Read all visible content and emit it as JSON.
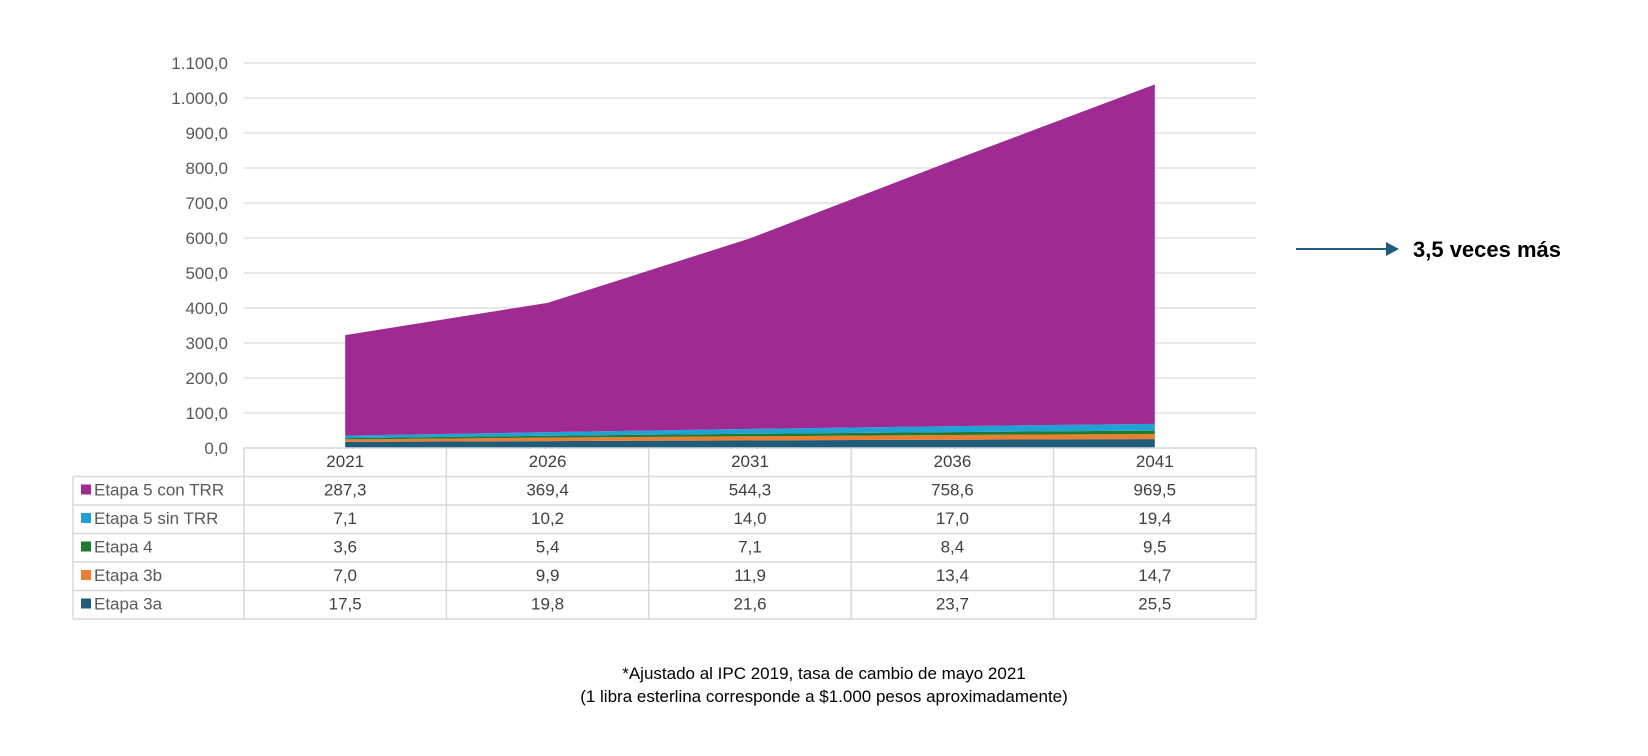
{
  "chart_data": {
    "type": "area",
    "stacked": true,
    "title": "",
    "xlabel": "",
    "ylabel": "",
    "categories": [
      "2021",
      "2026",
      "2031",
      "2036",
      "2041"
    ],
    "ylim": [
      0,
      1100
    ],
    "yticks": [
      0,
      100,
      200,
      300,
      400,
      500,
      600,
      700,
      800,
      900,
      1000,
      1100
    ],
    "ytick_labels": [
      "0,0",
      "100,0",
      "200,0",
      "300,0",
      "400,0",
      "500,0",
      "600,0",
      "700,0",
      "800,0",
      "900,0",
      "1.000,0",
      "1.100,0"
    ],
    "grid": true,
    "legend": "data table below the chart",
    "series": [
      {
        "name": "Etapa 3a",
        "color": "#1F5C7A",
        "values": [
          17.5,
          19.8,
          21.6,
          23.7,
          25.5
        ],
        "labels": [
          "17,5",
          "19,8",
          "21,6",
          "23,7",
          "25,5"
        ]
      },
      {
        "name": "Etapa 3b",
        "color": "#ED7D31",
        "values": [
          7.0,
          9.9,
          11.9,
          13.4,
          14.7
        ],
        "labels": [
          "7,0",
          "9,9",
          "11,9",
          "13,4",
          "14,7"
        ]
      },
      {
        "name": "Etapa 4",
        "color": "#1E7A2E",
        "values": [
          3.6,
          5.4,
          7.1,
          8.4,
          9.5
        ],
        "labels": [
          "3,6",
          "5,4",
          "7,1",
          "8,4",
          "9,5"
        ]
      },
      {
        "name": "Etapa 5 sin TRR",
        "color": "#1FA3D6",
        "values": [
          7.1,
          10.2,
          14.0,
          17.0,
          19.4
        ],
        "labels": [
          "7,1",
          "10,2",
          "14,0",
          "17,0",
          "19,4"
        ]
      },
      {
        "name": "Etapa 5 con TRR",
        "color": "#9F2A92",
        "values": [
          287.3,
          369.4,
          544.3,
          758.6,
          969.5
        ],
        "labels": [
          "287,3",
          "369,4",
          "544,3",
          "758,6",
          "969,5"
        ]
      }
    ],
    "table_row_order": [
      "Etapa 5 con TRR",
      "Etapa 5 sin TRR",
      "Etapa 4",
      "Etapa 3b",
      "Etapa 3a"
    ],
    "annotations": [
      {
        "text": "3,5 veces más",
        "arrow_color": "#1F5C7A"
      }
    ]
  },
  "footnote": {
    "line1": "*Ajustado al IPC 2019, tasa de cambio de mayo 2021",
    "line2": "(1 libra esterlina corresponde a $1.000 pesos aproximadamente)"
  },
  "colors": {
    "grid": "#D9D9D9",
    "table_border": "#D9D9D9",
    "arrow": "#1F5C7A"
  }
}
